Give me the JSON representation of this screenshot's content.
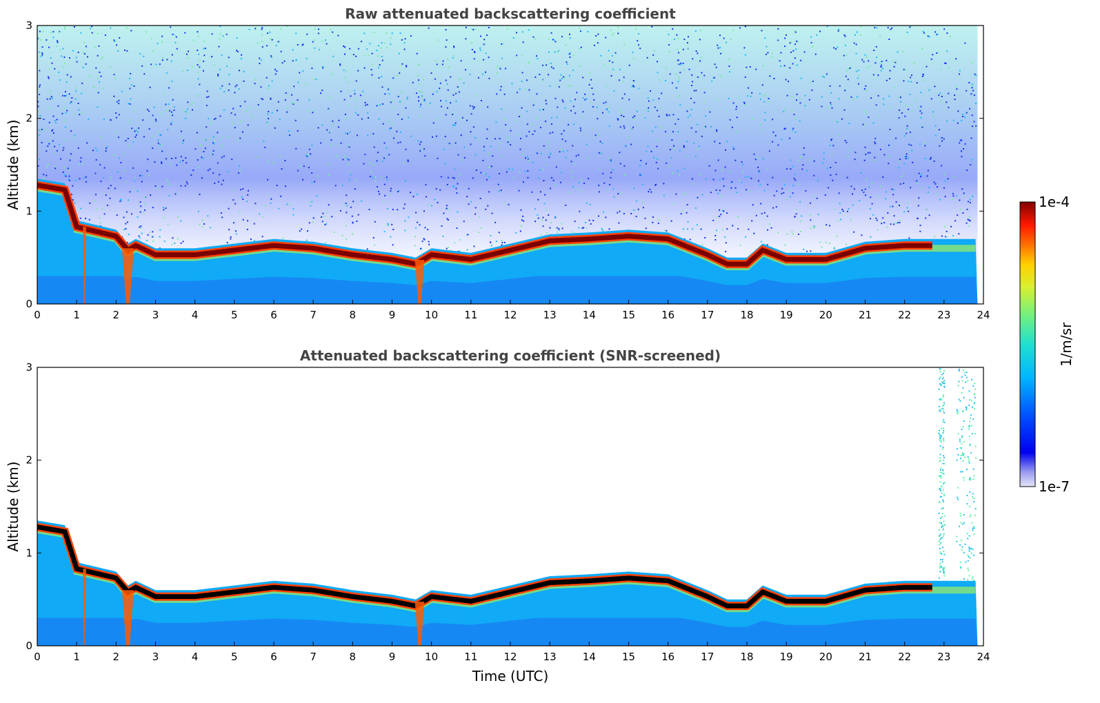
{
  "chart_data": [
    {
      "type": "heatmap",
      "title": "Raw attenuated backscattering coefficient",
      "xlabel": "",
      "ylabel": "Altitude (km)",
      "xlim": [
        0,
        24
      ],
      "ylim": [
        0,
        3
      ],
      "x_ticks": [
        "0",
        "1",
        "2",
        "3",
        "4",
        "5",
        "6",
        "7",
        "8",
        "9",
        "10",
        "11",
        "12",
        "13",
        "14",
        "15",
        "16",
        "17",
        "18",
        "19",
        "20",
        "21",
        "22",
        "23",
        "24"
      ],
      "y_ticks": [
        "0",
        "1",
        "2",
        "3"
      ],
      "screened": false,
      "layer_top_km": {
        "x": [
          0,
          0.7,
          1.0,
          1.5,
          2.0,
          2.3,
          2.5,
          3,
          4,
          5,
          6,
          7,
          8,
          9,
          9.6,
          10,
          11,
          12,
          13,
          14,
          15,
          16,
          17,
          17.5,
          18,
          18.4,
          19,
          20,
          21,
          22,
          22.7
        ],
        "y": [
          1.3,
          1.25,
          0.85,
          0.8,
          0.75,
          0.6,
          0.65,
          0.55,
          0.55,
          0.6,
          0.65,
          0.62,
          0.55,
          0.5,
          0.45,
          0.55,
          0.5,
          0.6,
          0.7,
          0.72,
          0.75,
          0.72,
          0.55,
          0.45,
          0.45,
          0.6,
          0.5,
          0.5,
          0.62,
          0.65,
          0.65
        ]
      }
    },
    {
      "type": "heatmap",
      "title": "Attenuated backscattering coefficient (SNR-screened)",
      "xlabel": "Time (UTC)",
      "ylabel": "Altitude (km)",
      "xlim": [
        0,
        24
      ],
      "ylim": [
        0,
        3
      ],
      "x_ticks": [
        "0",
        "1",
        "2",
        "3",
        "4",
        "5",
        "6",
        "7",
        "8",
        "9",
        "10",
        "11",
        "12",
        "13",
        "14",
        "15",
        "16",
        "17",
        "18",
        "19",
        "20",
        "21",
        "22",
        "23",
        "24"
      ],
      "y_ticks": [
        "0",
        "1",
        "2",
        "3"
      ],
      "screened": true,
      "layer_top_km": {
        "x": [
          0,
          0.7,
          1.0,
          1.5,
          2.0,
          2.3,
          2.5,
          3,
          4,
          5,
          6,
          7,
          8,
          9,
          9.6,
          10,
          11,
          12,
          13,
          14,
          15,
          16,
          17,
          17.5,
          18,
          18.4,
          19,
          20,
          21,
          22,
          22.7
        ],
        "y": [
          1.3,
          1.25,
          0.85,
          0.8,
          0.75,
          0.6,
          0.65,
          0.55,
          0.55,
          0.6,
          0.65,
          0.62,
          0.55,
          0.5,
          0.45,
          0.55,
          0.5,
          0.6,
          0.7,
          0.72,
          0.75,
          0.72,
          0.55,
          0.45,
          0.45,
          0.6,
          0.5,
          0.5,
          0.62,
          0.65,
          0.65
        ]
      }
    }
  ],
  "colorbar": {
    "label": "1/m/sr",
    "max_label": "1e-4",
    "min_label": "1e-7",
    "colormap": "jet"
  }
}
